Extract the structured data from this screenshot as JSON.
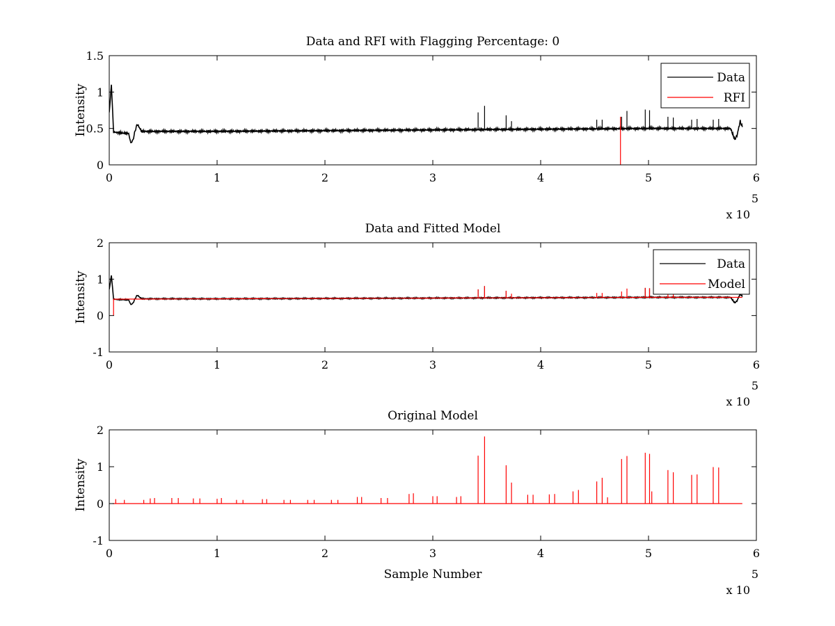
{
  "chart_data": [
    {
      "type": "line",
      "title": "Data and RFI with Flagging Percentage: 0",
      "xlabel": "",
      "ylabel": "Intensity",
      "xlim": [
        0,
        6
      ],
      "ylim": [
        0,
        1.5
      ],
      "xticks": [
        "0",
        "1",
        "2",
        "3",
        "4",
        "5",
        "6"
      ],
      "yticks": [
        "0",
        "0.5",
        "1",
        "1.5"
      ],
      "x_multiplier": {
        "base": "x 10",
        "exponent": "5"
      },
      "legend": {
        "position": "top-right",
        "entries": [
          "Data",
          "RFI"
        ]
      },
      "series": [
        {
          "name": "Data",
          "color": "#000000",
          "baseline": [
            [
              0,
              0.72
            ],
            [
              0.02,
              1.1
            ],
            [
              0.04,
              0.45
            ],
            [
              0.1,
              0.44
            ],
            [
              0.18,
              0.43
            ],
            [
              0.2,
              0.3
            ],
            [
              0.22,
              0.34
            ],
            [
              0.24,
              0.47
            ],
            [
              0.26,
              0.56
            ],
            [
              0.3,
              0.46
            ],
            [
              1.0,
              0.46
            ],
            [
              2.0,
              0.47
            ],
            [
              3.0,
              0.48
            ],
            [
              4.0,
              0.49
            ],
            [
              5.0,
              0.5
            ],
            [
              5.76,
              0.5
            ],
            [
              5.8,
              0.35
            ],
            [
              5.82,
              0.4
            ],
            [
              5.85,
              0.6
            ],
            [
              5.87,
              0.52
            ]
          ],
          "spikes": [
            [
              3.42,
              0.72
            ],
            [
              3.48,
              0.81
            ],
            [
              3.68,
              0.68
            ],
            [
              3.73,
              0.6
            ],
            [
              4.52,
              0.62
            ],
            [
              4.57,
              0.62
            ],
            [
              4.75,
              0.66
            ],
            [
              4.8,
              0.74
            ],
            [
              4.97,
              0.76
            ],
            [
              5.01,
              0.75
            ],
            [
              5.18,
              0.66
            ],
            [
              5.23,
              0.65
            ],
            [
              5.4,
              0.62
            ],
            [
              5.45,
              0.63
            ],
            [
              5.6,
              0.62
            ],
            [
              5.65,
              0.63
            ]
          ]
        },
        {
          "name": "RFI",
          "color": "#ff0000",
          "spikes": [
            [
              4.74,
              0.66
            ]
          ]
        }
      ]
    },
    {
      "type": "line",
      "title": "Data and Fitted Model",
      "xlabel": "",
      "ylabel": "Intensity",
      "xlim": [
        0,
        6
      ],
      "ylim": [
        -1,
        2
      ],
      "xticks": [
        "0",
        "1",
        "2",
        "3",
        "4",
        "5",
        "6"
      ],
      "yticks": [
        "-1",
        "0",
        "1",
        "2"
      ],
      "x_multiplier": {
        "base": "x 10",
        "exponent": "5"
      },
      "legend": {
        "position": "top-right",
        "entries": [
          "Data",
          "Model"
        ]
      },
      "series": [
        {
          "name": "Data",
          "color": "#000000",
          "baseline": [
            [
              0,
              0.72
            ],
            [
              0.02,
              1.1
            ],
            [
              0.04,
              0.45
            ],
            [
              0.1,
              0.44
            ],
            [
              0.18,
              0.43
            ],
            [
              0.2,
              0.3
            ],
            [
              0.22,
              0.34
            ],
            [
              0.24,
              0.47
            ],
            [
              0.26,
              0.56
            ],
            [
              0.3,
              0.46
            ],
            [
              1.0,
              0.46
            ],
            [
              2.0,
              0.47
            ],
            [
              3.0,
              0.48
            ],
            [
              4.0,
              0.49
            ],
            [
              5.0,
              0.5
            ],
            [
              5.76,
              0.5
            ],
            [
              5.8,
              0.35
            ],
            [
              5.82,
              0.4
            ],
            [
              5.85,
              0.6
            ],
            [
              5.87,
              0.52
            ]
          ],
          "spikes": [
            [
              3.42,
              0.72
            ],
            [
              3.48,
              0.81
            ],
            [
              3.68,
              0.68
            ],
            [
              4.97,
              0.76
            ],
            [
              5.01,
              0.75
            ]
          ]
        },
        {
          "name": "Model",
          "color": "#ff0000",
          "baseline": [
            [
              0.04,
              0.0
            ],
            [
              0.04,
              0.45
            ],
            [
              1.0,
              0.46
            ],
            [
              2.0,
              0.47
            ],
            [
              3.0,
              0.48
            ],
            [
              4.0,
              0.49
            ],
            [
              5.0,
              0.5
            ],
            [
              5.87,
              0.5
            ]
          ],
          "spikes": [
            [
              3.42,
              0.72
            ],
            [
              3.48,
              0.81
            ],
            [
              3.68,
              0.68
            ],
            [
              3.73,
              0.6
            ],
            [
              4.52,
              0.62
            ],
            [
              4.57,
              0.62
            ],
            [
              4.75,
              0.66
            ],
            [
              4.8,
              0.74
            ],
            [
              4.97,
              0.76
            ],
            [
              5.01,
              0.75
            ],
            [
              5.18,
              0.66
            ],
            [
              5.23,
              0.65
            ]
          ]
        }
      ]
    },
    {
      "type": "line",
      "title": "Original Model",
      "xlabel": "Sample Number",
      "ylabel": "Intensity",
      "xlim": [
        0,
        6
      ],
      "ylim": [
        -1,
        2
      ],
      "xticks": [
        "0",
        "1",
        "2",
        "3",
        "4",
        "5",
        "6"
      ],
      "yticks": [
        "-1",
        "0",
        "1",
        "2"
      ],
      "x_multiplier": {
        "base": "x 10",
        "exponent": "5"
      },
      "series": [
        {
          "name": "",
          "color": "#ff0000",
          "baseline": [
            [
              0.03,
              0.0
            ],
            [
              5.87,
              0.0
            ]
          ],
          "spikes": [
            [
              0.06,
              0.12
            ],
            [
              0.14,
              0.1
            ],
            [
              0.32,
              0.1
            ],
            [
              0.38,
              0.14
            ],
            [
              0.42,
              0.15
            ],
            [
              0.58,
              0.15
            ],
            [
              0.64,
              0.15
            ],
            [
              0.78,
              0.14
            ],
            [
              0.84,
              0.14
            ],
            [
              1.0,
              0.13
            ],
            [
              1.04,
              0.15
            ],
            [
              1.18,
              0.1
            ],
            [
              1.24,
              0.1
            ],
            [
              1.42,
              0.12
            ],
            [
              1.46,
              0.12
            ],
            [
              1.62,
              0.1
            ],
            [
              1.68,
              0.1
            ],
            [
              1.84,
              0.1
            ],
            [
              1.9,
              0.1
            ],
            [
              2.06,
              0.1
            ],
            [
              2.12,
              0.1
            ],
            [
              2.3,
              0.18
            ],
            [
              2.34,
              0.18
            ],
            [
              2.52,
              0.15
            ],
            [
              2.58,
              0.15
            ],
            [
              2.78,
              0.26
            ],
            [
              2.82,
              0.28
            ],
            [
              3.0,
              0.2
            ],
            [
              3.04,
              0.2
            ],
            [
              3.22,
              0.18
            ],
            [
              3.26,
              0.2
            ],
            [
              3.42,
              1.3
            ],
            [
              3.48,
              1.82
            ],
            [
              3.68,
              1.04
            ],
            [
              3.73,
              0.57
            ],
            [
              3.88,
              0.24
            ],
            [
              3.93,
              0.24
            ],
            [
              4.08,
              0.25
            ],
            [
              4.13,
              0.26
            ],
            [
              4.3,
              0.33
            ],
            [
              4.35,
              0.37
            ],
            [
              4.52,
              0.6
            ],
            [
              4.57,
              0.7
            ],
            [
              4.62,
              0.17
            ],
            [
              4.75,
              1.21
            ],
            [
              4.8,
              1.29
            ],
            [
              4.97,
              1.38
            ],
            [
              5.01,
              1.35
            ],
            [
              5.03,
              0.33
            ],
            [
              5.18,
              0.91
            ],
            [
              5.23,
              0.85
            ],
            [
              5.4,
              0.78
            ],
            [
              5.45,
              0.79
            ],
            [
              5.6,
              0.99
            ],
            [
              5.65,
              0.98
            ]
          ]
        }
      ]
    }
  ]
}
